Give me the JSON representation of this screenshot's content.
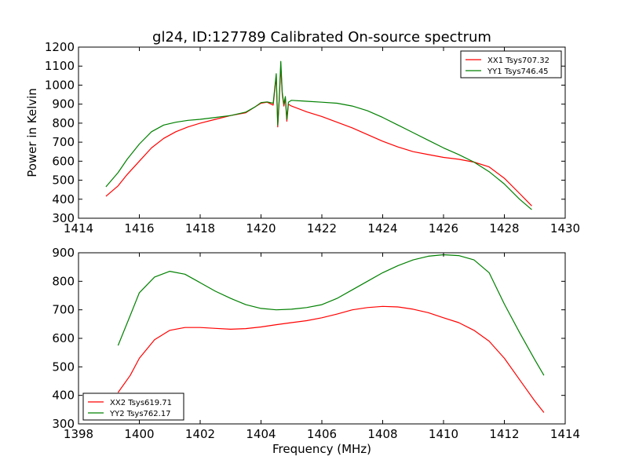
{
  "title": "gl24, ID:127789 Calibrated On-source spectrum",
  "chart_data": [
    {
      "type": "line",
      "ylabel": "Power in Kelvin",
      "xlabel": "",
      "xlim": [
        1414,
        1430
      ],
      "ylim": [
        300,
        1200
      ],
      "x_ticks": [
        1414,
        1416,
        1418,
        1420,
        1422,
        1424,
        1426,
        1428,
        1430
      ],
      "y_ticks": [
        300,
        400,
        500,
        600,
        700,
        800,
        900,
        1000,
        1100,
        1200
      ],
      "legend_position": "top-right",
      "series": [
        {
          "name": "XX1 Tsys707.32",
          "color": "#ff0000",
          "x": [
            1414.9,
            1415.3,
            1415.6,
            1416.0,
            1416.4,
            1416.8,
            1417.2,
            1417.6,
            1418.0,
            1418.5,
            1419.0,
            1419.5,
            1419.8,
            1420.0,
            1420.2,
            1420.4,
            1420.5,
            1420.55,
            1420.6,
            1420.65,
            1420.7,
            1420.75,
            1420.8,
            1420.85,
            1420.9,
            1421.0,
            1421.5,
            1422.0,
            1422.5,
            1423.0,
            1423.5,
            1424.0,
            1424.5,
            1425.0,
            1425.5,
            1426.0,
            1426.5,
            1427.0,
            1427.5,
            1428.0,
            1428.5,
            1428.9
          ],
          "values": [
            415,
            470,
            530,
            600,
            670,
            720,
            755,
            780,
            800,
            820,
            840,
            855,
            885,
            905,
            910,
            895,
            1050,
            780,
            920,
            1100,
            950,
            890,
            930,
            810,
            900,
            890,
            860,
            835,
            805,
            775,
            740,
            705,
            675,
            650,
            635,
            620,
            610,
            595,
            570,
            510,
            430,
            365
          ]
        },
        {
          "name": "YY1 Tsys746.45",
          "color": "#008000",
          "x": [
            1414.9,
            1415.3,
            1415.6,
            1416.0,
            1416.4,
            1416.8,
            1417.2,
            1417.6,
            1418.0,
            1418.5,
            1419.0,
            1419.5,
            1419.8,
            1420.0,
            1420.2,
            1420.4,
            1420.5,
            1420.55,
            1420.6,
            1420.65,
            1420.7,
            1420.75,
            1420.8,
            1420.85,
            1420.9,
            1421.0,
            1421.5,
            1422.0,
            1422.5,
            1423.0,
            1423.5,
            1424.0,
            1424.5,
            1425.0,
            1425.5,
            1426.0,
            1426.5,
            1427.0,
            1427.5,
            1428.0,
            1428.5,
            1428.9
          ],
          "values": [
            465,
            540,
            610,
            690,
            755,
            790,
            805,
            815,
            820,
            830,
            840,
            858,
            885,
            908,
            912,
            905,
            1060,
            790,
            930,
            1125,
            960,
            900,
            940,
            820,
            910,
            920,
            915,
            910,
            905,
            890,
            865,
            830,
            790,
            750,
            710,
            670,
            635,
            595,
            545,
            480,
            400,
            345
          ]
        }
      ]
    },
    {
      "type": "line",
      "ylabel": "",
      "xlabel": "Frequency (MHz)",
      "xlim": [
        1398,
        1414
      ],
      "ylim": [
        300,
        900
      ],
      "x_ticks": [
        1398,
        1400,
        1402,
        1404,
        1406,
        1408,
        1410,
        1412,
        1414
      ],
      "y_ticks": [
        300,
        400,
        500,
        600,
        700,
        800,
        900
      ],
      "legend_position": "bottom-left",
      "series": [
        {
          "name": "XX2 Tsys619.71",
          "color": "#ff0000",
          "x": [
            1399.3,
            1399.7,
            1400.0,
            1400.5,
            1401.0,
            1401.5,
            1402.0,
            1402.5,
            1403.0,
            1403.5,
            1404.0,
            1404.5,
            1405.0,
            1405.5,
            1406.0,
            1406.5,
            1407.0,
            1407.5,
            1408.0,
            1408.5,
            1409.0,
            1409.5,
            1410.0,
            1410.5,
            1411.0,
            1411.5,
            1412.0,
            1412.5,
            1413.0,
            1413.3
          ],
          "values": [
            410,
            470,
            530,
            595,
            628,
            638,
            638,
            635,
            632,
            634,
            640,
            648,
            655,
            662,
            672,
            685,
            700,
            708,
            712,
            710,
            702,
            690,
            672,
            655,
            628,
            590,
            530,
            455,
            380,
            340
          ]
        },
        {
          "name": "YY2 Tsys762.17",
          "color": "#008000",
          "x": [
            1399.3,
            1399.7,
            1400.0,
            1400.5,
            1401.0,
            1401.5,
            1402.0,
            1402.5,
            1403.0,
            1403.5,
            1404.0,
            1404.5,
            1405.0,
            1405.5,
            1406.0,
            1406.5,
            1407.0,
            1407.5,
            1408.0,
            1408.5,
            1409.0,
            1409.5,
            1410.0,
            1410.5,
            1411.0,
            1411.5,
            1412.0,
            1412.5,
            1413.0,
            1413.3
          ],
          "values": [
            575,
            680,
            760,
            815,
            835,
            825,
            795,
            765,
            740,
            718,
            705,
            700,
            702,
            708,
            718,
            740,
            770,
            800,
            830,
            855,
            875,
            888,
            893,
            890,
            875,
            830,
            720,
            620,
            525,
            470
          ]
        }
      ]
    }
  ]
}
